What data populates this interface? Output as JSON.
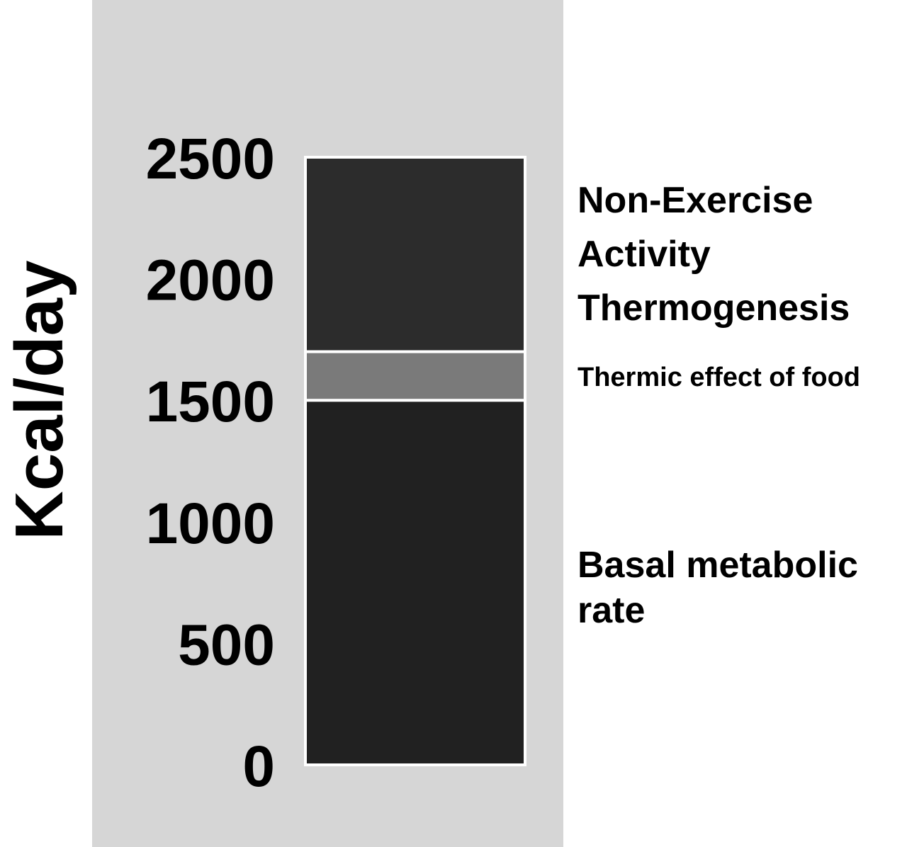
{
  "chart_data": {
    "type": "bar",
    "stacked": true,
    "categories": [
      ""
    ],
    "ylabel": "Kcal/day",
    "ylim": [
      0,
      2500
    ],
    "yticks": [
      0,
      500,
      1000,
      1500,
      2000,
      2500
    ],
    "grid": false,
    "series": [
      {
        "name": "Basal metabolic rate",
        "values": [
          1500
        ],
        "color": "#212121"
      },
      {
        "name": "Thermic effect of food",
        "values": [
          200
        ],
        "color": "#7a7a7a"
      },
      {
        "name": "Non-Exercise Activity Thermogenesis",
        "values": [
          800
        ],
        "color": "#2c2c2c"
      }
    ],
    "background_color": "#d6d6d6",
    "series_labels": [
      {
        "lines": [
          "Basal metabolic",
          "rate"
        ]
      },
      {
        "lines": [
          "Thermic effect of food"
        ]
      },
      {
        "lines": [
          "Non-Exercise",
          "Activity",
          "Thermogenesis"
        ]
      }
    ]
  }
}
